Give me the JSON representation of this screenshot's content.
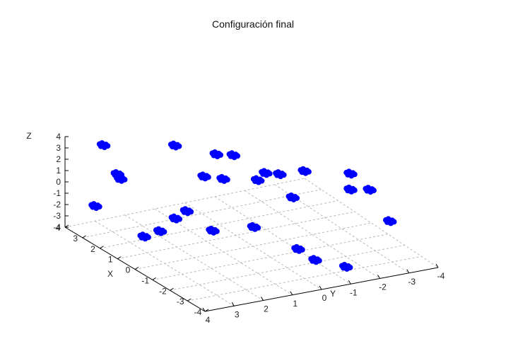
{
  "chart_data": {
    "type": "scatter",
    "title": "Configuración final",
    "xlabel": "X",
    "ylabel": "Y",
    "zlabel": "Z",
    "xlim": [
      -4,
      4
    ],
    "ylim": [
      -4,
      4
    ],
    "zlim": [
      -4,
      4
    ],
    "x_ticks": [
      "-4",
      "-3",
      "-2",
      "-1",
      "0",
      "1",
      "2",
      "3",
      "4"
    ],
    "y_ticks": [
      "-4",
      "-3",
      "-2",
      "-1",
      "0",
      "1",
      "2",
      "3",
      "4"
    ],
    "z_ticks": [
      "-4",
      "-3",
      "-2",
      "-1",
      "0",
      "1",
      "2",
      "3",
      "4"
    ],
    "grid": true,
    "marker_color": "#0000ff",
    "clusters": [
      [
        1.0,
        3.9,
        3.0
      ],
      [
        3.0,
        3.3,
        3.8
      ],
      [
        3.3,
        3.4,
        -1.8
      ],
      [
        3.4,
        2.6,
        0.5
      ],
      [
        1.8,
        1.6,
        4.0
      ],
      [
        0.6,
        1.9,
        -0.5
      ],
      [
        1.8,
        2.1,
        -3.3
      ],
      [
        2.2,
        2.4,
        -4.0
      ],
      [
        0.3,
        0.5,
        4.0
      ],
      [
        2.0,
        0.5,
        0.5
      ],
      [
        0.2,
        0.9,
        2.2
      ],
      [
        0.6,
        0.9,
        4.0
      ],
      [
        -0.6,
        0.2,
        2.5
      ],
      [
        -0.2,
        -0.3,
        2.5
      ],
      [
        -1.2,
        -0.2,
        3.4
      ],
      [
        -1.8,
        -0.7,
        4.0
      ],
      [
        -1.1,
        -0.7,
        1.0
      ],
      [
        -2.6,
        -1.8,
        4.0
      ],
      [
        -2.6,
        -1.8,
        2.6
      ],
      [
        -2.0,
        -2.8,
        1.5
      ],
      [
        -3.2,
        -2.8,
        -0.1
      ],
      [
        1.6,
        1.7,
        -2.2
      ],
      [
        -0.9,
        0.5,
        -1.2
      ],
      [
        0.3,
        1.2,
        -2.3
      ],
      [
        -0.9,
        -1.0,
        -3.9
      ],
      [
        -1.9,
        -1.0,
        -3.9
      ],
      [
        -3.2,
        -1.3,
        -3.4
      ]
    ]
  }
}
